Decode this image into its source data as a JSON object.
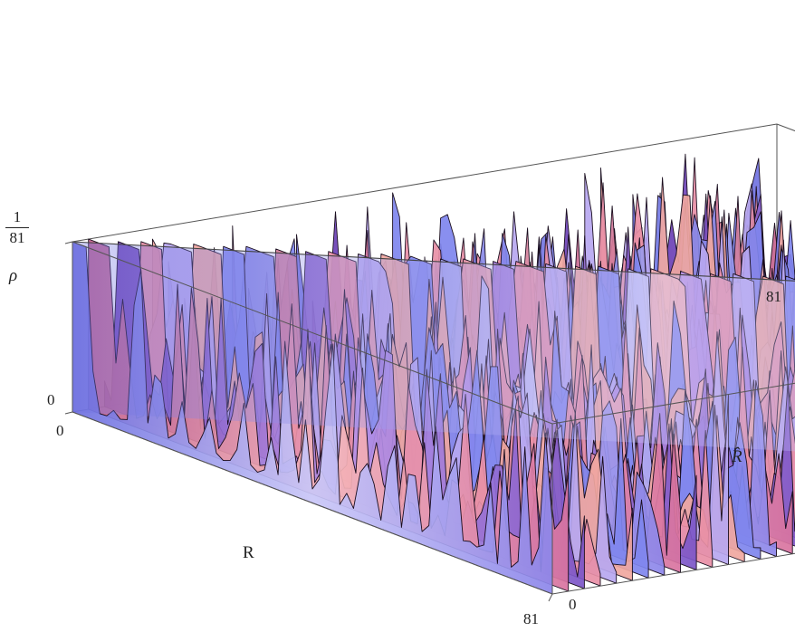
{
  "chart_data": {
    "type": "surface3d",
    "title": "",
    "axes": {
      "x": {
        "label": "R",
        "min": 0,
        "max": 81,
        "ticks": [
          "0",
          "81"
        ]
      },
      "y": {
        "label": "R̂",
        "min": 0,
        "max": 81,
        "ticks": [
          "0",
          "81"
        ]
      },
      "z": {
        "label": "ρ",
        "min": 0,
        "max": 0.012345679,
        "ticks": [
          "0",
          "1/81"
        ]
      }
    },
    "description_values": {
      "diagonal_ridge": "ρ = 1/81 where R = R̂",
      "off_diagonal": "irregular spiky values between 0 and 1/81"
    },
    "colors": {
      "pink": "#e88fa6",
      "salmon": "#f0a7a0",
      "lavender": "#b7a7f0",
      "blue": "#7f86ee",
      "purple": "#7b55c7",
      "edge": "#1a0e1f",
      "box": "#555555"
    }
  },
  "labels": {
    "z_top_num": "1",
    "z_top_den": "81",
    "z_axis": "ρ",
    "z_zero": "0",
    "origin": "0",
    "x_axis": "R",
    "x_end": "81",
    "y_zero": "0",
    "y_axis": "R̂",
    "y_end": "81"
  }
}
